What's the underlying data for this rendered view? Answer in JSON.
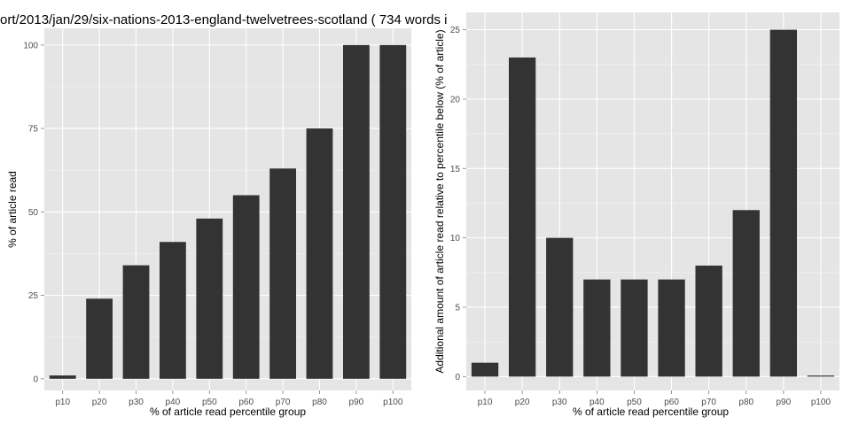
{
  "title": "ort/2013/jan/29/six-nations-2013-england-twelvetrees-scotland ( 734 words i",
  "colors": {
    "panel": "#e5e5e5",
    "grid_major": "#ffffff",
    "grid_minor": "#f2f2f2",
    "bar": "#333333",
    "tick_text": "#4d4d4d"
  },
  "chart_data": [
    {
      "type": "bar",
      "categories": [
        "p10",
        "p20",
        "p30",
        "p40",
        "p50",
        "p60",
        "p70",
        "p80",
        "p90",
        "p100"
      ],
      "values": [
        1,
        24,
        34,
        41,
        48,
        55,
        63,
        75,
        100,
        100
      ],
      "xlabel": "% of article read percentile group",
      "ylabel": "% of article read",
      "ylim": [
        -3.5,
        105
      ],
      "yticks": [
        0,
        25,
        50,
        75,
        100
      ],
      "grid": true
    },
    {
      "type": "bar",
      "categories": [
        "p10",
        "p20",
        "p30",
        "p40",
        "p50",
        "p60",
        "p70",
        "p80",
        "p90",
        "p100"
      ],
      "values": [
        1,
        23,
        10,
        7,
        7,
        7,
        8,
        12,
        25,
        0
      ],
      "xlabel": "% of article read percentile group",
      "ylabel": "Additional amount of article read relative to percentile below (% of article)",
      "ylim": [
        -1,
        26.25
      ],
      "yticks": [
        0,
        5,
        10,
        15,
        20,
        25
      ],
      "grid": true
    }
  ]
}
